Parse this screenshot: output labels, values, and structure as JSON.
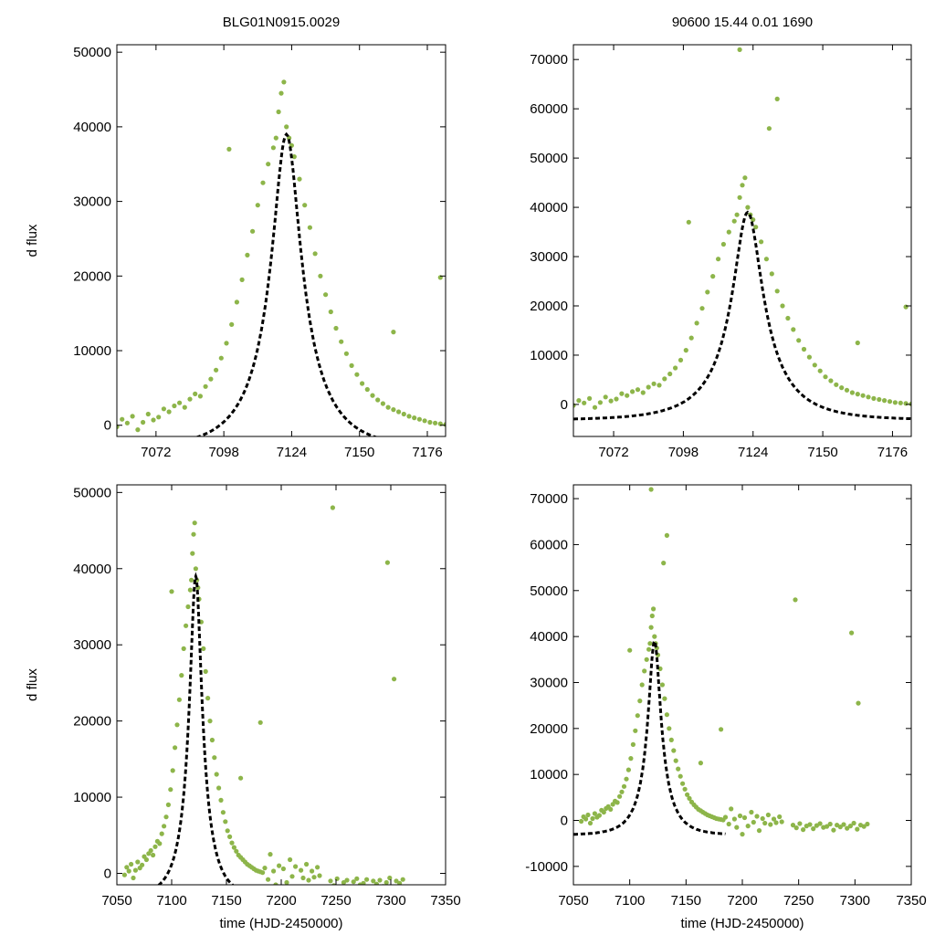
{
  "figure": {
    "title_left": "BLG01N0915.0029",
    "title_right": "90600  15.44  0.01  1690"
  },
  "colors": {
    "points": "#8db54a",
    "model": "#000000"
  },
  "chart_data": [
    {
      "id": "top-left",
      "type": "scatter",
      "title": "BLG01N0915.0029",
      "xlabel": "",
      "ylabel": "d flux",
      "xlim": [
        7057,
        7183
      ],
      "ylim": [
        -1500,
        51000
      ],
      "xticks": [
        7072,
        7098,
        7124,
        7150,
        7176
      ],
      "yticks": [
        0,
        10000,
        20000,
        30000,
        40000,
        50000
      ],
      "model": {
        "t0": 7122,
        "peak": 39000,
        "tE": 22,
        "u0": 0.25,
        "baseline": -3200
      }
    },
    {
      "id": "top-right",
      "type": "scatter",
      "title": "90600  15.44  0.01  1690",
      "xlabel": "",
      "ylabel": "",
      "xlim": [
        7057,
        7183
      ],
      "ylim": [
        -6500,
        73000
      ],
      "xticks": [
        7072,
        7098,
        7124,
        7150,
        7176
      ],
      "yticks": [
        0,
        10000,
        20000,
        30000,
        40000,
        50000,
        60000,
        70000
      ],
      "model": {
        "t0": 7122,
        "peak": 39000,
        "tE": 22,
        "u0": 0.25,
        "baseline": -3200
      }
    },
    {
      "id": "bottom-left",
      "type": "scatter",
      "title": "",
      "xlabel": "time (HJD-2450000)",
      "ylabel": "d flux",
      "xlim": [
        7050,
        7350
      ],
      "ylim": [
        -1500,
        51000
      ],
      "xticks": [
        7050,
        7100,
        7150,
        7200,
        7250,
        7300,
        7350
      ],
      "yticks": [
        0,
        10000,
        20000,
        30000,
        40000,
        50000
      ],
      "model": {
        "t0": 7122,
        "peak": 39000,
        "tE": 22,
        "u0": 0.25,
        "baseline": -3200
      }
    },
    {
      "id": "bottom-right",
      "type": "scatter",
      "title": "",
      "xlabel": "time (HJD-2450000)",
      "ylabel": "",
      "xlim": [
        7050,
        7350
      ],
      "ylim": [
        -14000,
        73000
      ],
      "xticks": [
        7050,
        7100,
        7150,
        7200,
        7250,
        7300,
        7350
      ],
      "yticks": [
        -10000,
        0,
        10000,
        20000,
        30000,
        40000,
        50000,
        60000,
        70000
      ],
      "model": {
        "t0": 7122,
        "peak": 39000,
        "tE": 22,
        "u0": 0.25,
        "baseline": -3200
      }
    }
  ],
  "observations": [
    [
      7057,
      -200
    ],
    [
      7059,
      800
    ],
    [
      7061,
      300
    ],
    [
      7063,
      1200
    ],
    [
      7065,
      -600
    ],
    [
      7067,
      400
    ],
    [
      7069,
      1500
    ],
    [
      7071,
      700
    ],
    [
      7073,
      1100
    ],
    [
      7075,
      2200
    ],
    [
      7077,
      1800
    ],
    [
      7079,
      2600
    ],
    [
      7081,
      3000
    ],
    [
      7083,
      2400
    ],
    [
      7085,
      3500
    ],
    [
      7087,
      4200
    ],
    [
      7089,
      3900
    ],
    [
      7091,
      5200
    ],
    [
      7093,
      6200
    ],
    [
      7095,
      7400
    ],
    [
      7097,
      9000
    ],
    [
      7099,
      11000
    ],
    [
      7101,
      13500
    ],
    [
      7103,
      16500
    ],
    [
      7105,
      19500
    ],
    [
      7107,
      22800
    ],
    [
      7109,
      26000
    ],
    [
      7111,
      29500
    ],
    [
      7113,
      32500
    ],
    [
      7115,
      35000
    ],
    [
      7117,
      37200
    ],
    [
      7118,
      38500
    ],
    [
      7119,
      42000
    ],
    [
      7120,
      44500
    ],
    [
      7121,
      46000
    ],
    [
      7122,
      40000
    ],
    [
      7123,
      38500
    ],
    [
      7124,
      37500
    ],
    [
      7125,
      36000
    ],
    [
      7127,
      33000
    ],
    [
      7129,
      29500
    ],
    [
      7131,
      26500
    ],
    [
      7133,
      23000
    ],
    [
      7135,
      20000
    ],
    [
      7137,
      17500
    ],
    [
      7139,
      15200
    ],
    [
      7141,
      13000
    ],
    [
      7143,
      11200
    ],
    [
      7145,
      9600
    ],
    [
      7147,
      8000
    ],
    [
      7149,
      6800
    ],
    [
      7151,
      5600
    ],
    [
      7153,
      4800
    ],
    [
      7155,
      4000
    ],
    [
      7157,
      3400
    ],
    [
      7159,
      2900
    ],
    [
      7161,
      2400
    ],
    [
      7163,
      2100
    ],
    [
      7165,
      1800
    ],
    [
      7167,
      1500
    ],
    [
      7169,
      1200
    ],
    [
      7171,
      1000
    ],
    [
      7173,
      800
    ],
    [
      7175,
      600
    ],
    [
      7177,
      400
    ],
    [
      7179,
      300
    ],
    [
      7181,
      200
    ],
    [
      7183,
      100
    ],
    [
      7185,
      700
    ],
    [
      7188,
      -800
    ],
    [
      7190,
      2500
    ],
    [
      7193,
      300
    ],
    [
      7195,
      -1500
    ],
    [
      7198,
      1000
    ],
    [
      7200,
      -3000
    ],
    [
      7202,
      600
    ],
    [
      7205,
      -1200
    ],
    [
      7208,
      1800
    ],
    [
      7210,
      -400
    ],
    [
      7213,
      900
    ],
    [
      7215,
      -2200
    ],
    [
      7218,
      400
    ],
    [
      7220,
      -600
    ],
    [
      7223,
      1200
    ],
    [
      7225,
      -900
    ],
    [
      7228,
      300
    ],
    [
      7230,
      -500
    ],
    [
      7233,
      800
    ],
    [
      7235,
      -300
    ],
    [
      7245,
      -1000
    ],
    [
      7248,
      -1600
    ],
    [
      7251,
      -700
    ],
    [
      7254,
      -2000
    ],
    [
      7257,
      -1200
    ],
    [
      7260,
      -900
    ],
    [
      7263,
      -1800
    ],
    [
      7266,
      -1100
    ],
    [
      7269,
      -700
    ],
    [
      7272,
      -1500
    ],
    [
      7275,
      -1300
    ],
    [
      7278,
      -800
    ],
    [
      7281,
      -2100
    ],
    [
      7284,
      -1000
    ],
    [
      7287,
      -1400
    ],
    [
      7290,
      -900
    ],
    [
      7293,
      -1700
    ],
    [
      7296,
      -1200
    ],
    [
      7299,
      -600
    ],
    [
      7302,
      -1900
    ],
    [
      7305,
      -1000
    ],
    [
      7308,
      -1300
    ],
    [
      7311,
      -800
    ],
    [
      7100,
      37000
    ],
    [
      7130,
      56000
    ],
    [
      7119,
      72000
    ],
    [
      7133,
      62000
    ],
    [
      7163,
      12500
    ],
    [
      7181,
      19800
    ],
    [
      7247,
      48000
    ],
    [
      7297,
      40800
    ],
    [
      7303,
      25500
    ]
  ]
}
